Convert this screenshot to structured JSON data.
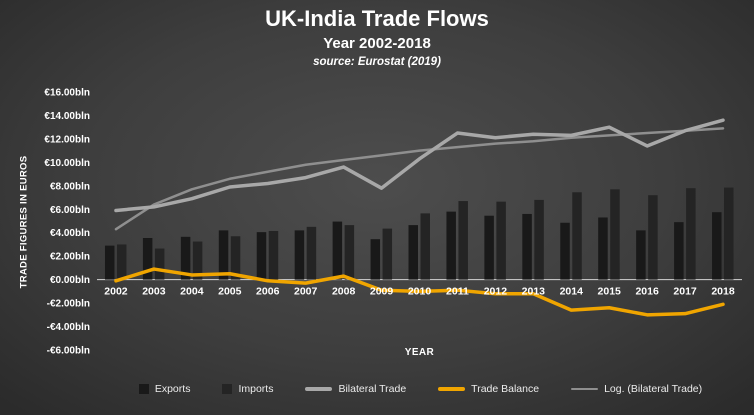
{
  "header": {
    "title": "UK-India Trade Flows",
    "subtitle": "Year 2002-2018",
    "source": "source: Eurostat (2019)"
  },
  "axes": {
    "x_title": "YEAR",
    "y_title": "TRADE FIGURES IN EUROS"
  },
  "colors": {
    "background_center": "#4d4d4d",
    "background_edge": "#2b2b2b",
    "exports_bar": "#191919",
    "imports_bar": "#242424",
    "bilateral_line": "#a8a8a8",
    "balance_line": "#f0a500",
    "log_line": "#8f8f8f",
    "axis_text": "#ffffff",
    "zero_axis": "#d6d6d6"
  },
  "chart_data": {
    "type": "bar",
    "title": "UK-India Trade Flows",
    "subtitle": "Year 2002-2018",
    "source": "source: Eurostat (2019)",
    "xlabel": "YEAR",
    "ylabel": "TRADE FIGURES IN EUROS",
    "ylim": [
      -6,
      16
    ],
    "grid": false,
    "legend_position": "bottom",
    "y_ticks": [
      {
        "value": 16,
        "label": "€16.00bln"
      },
      {
        "value": 14,
        "label": "€14.00bln"
      },
      {
        "value": 12,
        "label": "€12.00bln"
      },
      {
        "value": 10,
        "label": "€10.00bln"
      },
      {
        "value": 8,
        "label": "€8.00bln"
      },
      {
        "value": 6,
        "label": "€6.00bln"
      },
      {
        "value": 4,
        "label": "€4.00bln"
      },
      {
        "value": 2,
        "label": "€2.00bln"
      },
      {
        "value": 0,
        "label": "€0.00bln"
      },
      {
        "value": -2,
        "label": "-€2.00bln"
      },
      {
        "value": -4,
        "label": "-€4.00bln"
      },
      {
        "value": -6,
        "label": "-€6.00bln"
      }
    ],
    "categories": [
      "2002",
      "2003",
      "2004",
      "2005",
      "2006",
      "2007",
      "2008",
      "2009",
      "2010",
      "2011",
      "2012",
      "2013",
      "2014",
      "2015",
      "2016",
      "2017",
      "2018"
    ],
    "series": [
      {
        "name": "Exports",
        "kind": "bar",
        "values": [
          2.9,
          3.55,
          3.65,
          4.2,
          4.05,
          4.2,
          4.95,
          3.45,
          4.65,
          5.8,
          5.45,
          5.6,
          4.85,
          5.3,
          4.2,
          4.9,
          5.75
        ]
      },
      {
        "name": "Imports",
        "kind": "bar",
        "values": [
          3.0,
          2.65,
          3.25,
          3.7,
          4.15,
          4.5,
          4.65,
          4.35,
          5.65,
          6.7,
          6.65,
          6.8,
          7.45,
          7.7,
          7.2,
          7.8,
          7.85
        ]
      },
      {
        "name": "Bilateral Trade",
        "kind": "line",
        "values": [
          5.9,
          6.2,
          6.9,
          7.9,
          8.2,
          8.7,
          9.6,
          7.8,
          10.3,
          12.5,
          12.1,
          12.4,
          12.3,
          13.0,
          11.4,
          12.7,
          13.6
        ]
      },
      {
        "name": "Trade Balance",
        "kind": "line",
        "values": [
          -0.1,
          0.9,
          0.4,
          0.5,
          -0.1,
          -0.3,
          0.3,
          -0.9,
          -1.0,
          -0.9,
          -1.2,
          -1.2,
          -2.6,
          -2.4,
          -3.0,
          -2.9,
          -2.1
        ]
      },
      {
        "name": "Log. (Bilateral Trade)",
        "kind": "line",
        "values": [
          4.3,
          6.4,
          7.7,
          8.6,
          9.2,
          9.8,
          10.2,
          10.6,
          11.0,
          11.3,
          11.6,
          11.8,
          12.1,
          12.3,
          12.5,
          12.7,
          12.9
        ]
      }
    ]
  }
}
